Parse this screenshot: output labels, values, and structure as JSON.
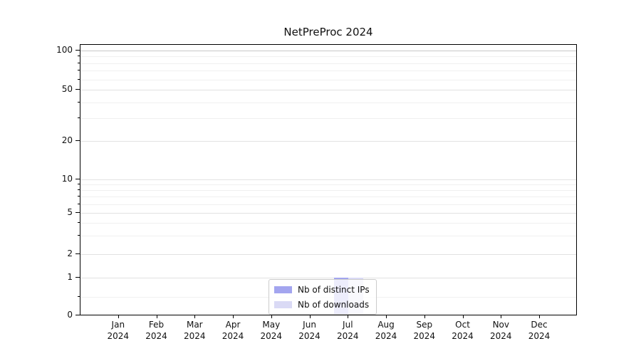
{
  "chart_data": {
    "type": "bar",
    "title": "NetPreProc 2024",
    "categories": [
      "Jan 2024",
      "Feb 2024",
      "Mar 2024",
      "Apr 2024",
      "May 2024",
      "Jun 2024",
      "Jul 2024",
      "Aug 2024",
      "Sep 2024",
      "Oct 2024",
      "Nov 2024",
      "Dec 2024"
    ],
    "series": [
      {
        "name": "Nb of distinct IPs",
        "color": "#a3a5ef",
        "values": [
          0,
          0,
          0,
          0,
          0,
          0,
          1,
          0,
          0,
          0,
          0,
          0
        ]
      },
      {
        "name": "Nb of downloads",
        "color": "#dadaf5",
        "values": [
          0,
          0,
          0,
          0,
          0,
          0,
          1,
          0,
          0,
          0,
          0,
          0
        ]
      }
    ],
    "yscale": "symlog",
    "ylim": [
      0,
      110
    ],
    "yticks_major": [
      100,
      50,
      20,
      10,
      5,
      2,
      1,
      0
    ],
    "yticks_minor": [
      90,
      80,
      70,
      60,
      40,
      30,
      9,
      8,
      7,
      6,
      4,
      3,
      0.5
    ],
    "grid": "both",
    "legend_position": "lower center"
  },
  "colors": {
    "grid_top_line": "#c8c8c8",
    "grid_major": "#e2e2e2",
    "grid_minor": "#f0f0f0",
    "axis": "#000000",
    "legend_border": "#cccccc"
  }
}
